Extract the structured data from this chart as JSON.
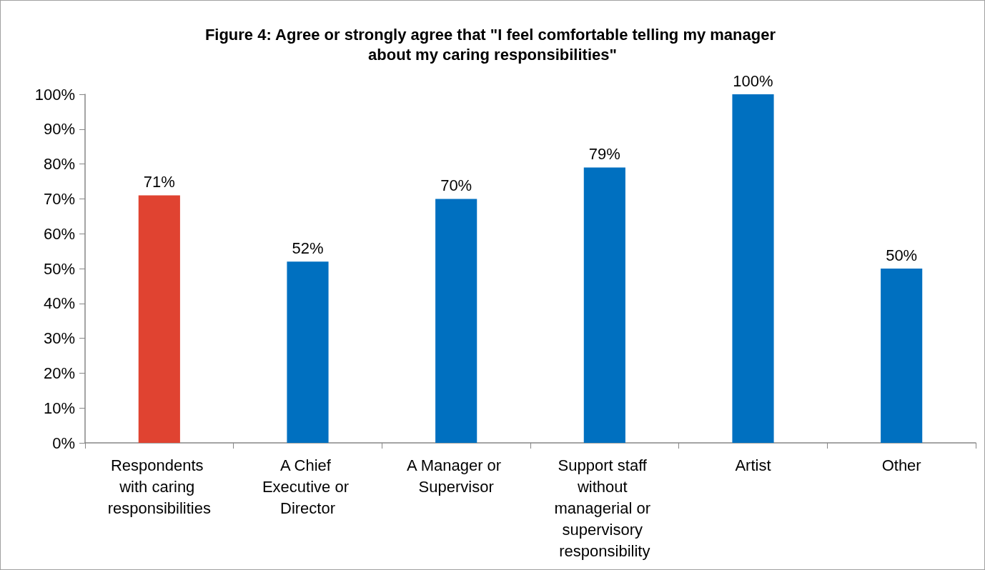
{
  "chart_data": {
    "type": "bar",
    "title": "Figure 4: Agree or strongly agree that \"I feel comfortable telling my manager about my caring responsibilities\"",
    "categories": [
      "Respondents with caring responsibilities",
      "A Chief Executive or Director",
      "A Manager or Supervisor",
      "Support staff without managerial or supervisory responsibility",
      "Artist",
      "Other"
    ],
    "values": [
      71,
      52,
      70,
      79,
      100,
      50
    ],
    "colors": [
      "#e04331",
      "#0070c0",
      "#0070c0",
      "#0070c0",
      "#0070c0",
      "#0070c0"
    ],
    "value_labels": [
      "71%",
      "52%",
      "70%",
      "79%",
      "100%",
      "50%"
    ],
    "ylim": [
      0,
      100
    ],
    "yticks": [
      {
        "value": 0,
        "label": "0%"
      },
      {
        "value": 10,
        "label": "10%"
      },
      {
        "value": 20,
        "label": "20%"
      },
      {
        "value": 30,
        "label": "30%"
      },
      {
        "value": 40,
        "label": "40%"
      },
      {
        "value": 50,
        "label": "50%"
      },
      {
        "value": 60,
        "label": "60%"
      },
      {
        "value": 70,
        "label": "70%"
      },
      {
        "value": 80,
        "label": "80%"
      },
      {
        "value": 90,
        "label": "90%"
      },
      {
        "value": 100,
        "label": "100%"
      }
    ],
    "grid": false
  }
}
